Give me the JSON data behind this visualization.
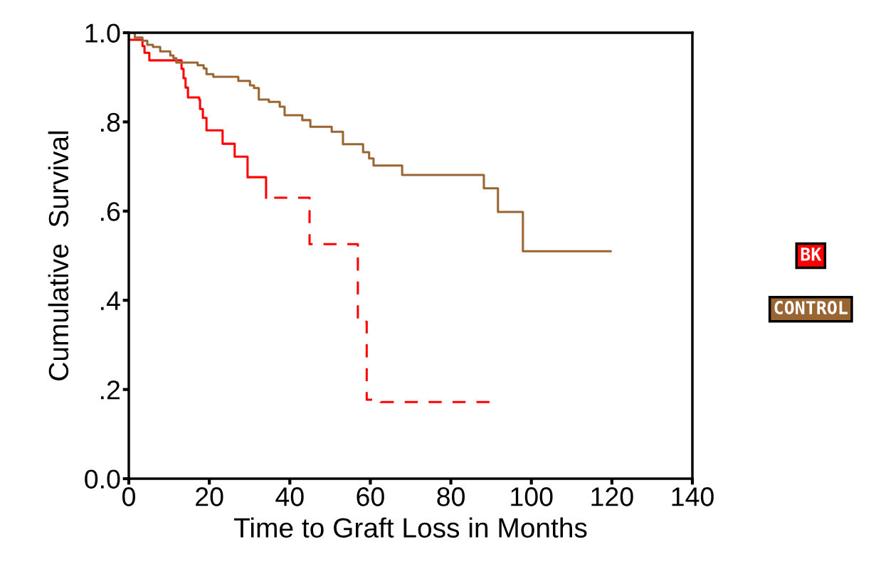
{
  "chart_data": {
    "type": "step",
    "xlabel": "Time to Graft Loss in Months",
    "ylabel": "Cumulative  Survival",
    "xlim": [
      0,
      140
    ],
    "xticks": [
      0,
      20,
      40,
      60,
      80,
      100,
      120,
      140
    ],
    "ylim": [
      0,
      1
    ],
    "yticks": [
      {
        "value": 0,
        "label": "0.0"
      },
      {
        "value": 0.2,
        "label": ".2"
      },
      {
        "value": 0.4,
        "label": ".4"
      },
      {
        "value": 0.6,
        "label": ".6"
      },
      {
        "value": 0.8,
        "label": ".8"
      },
      {
        "value": 1,
        "label": "1.0"
      }
    ],
    "grid": false,
    "legend": "right",
    "marker": "none",
    "series": [
      {
        "name": "BK",
        "color": "#ff0000",
        "line_style": "solid",
        "x": [
          0,
          3.4,
          3.9,
          5.1,
          13.1,
          13.6,
          14.1,
          14.7,
          17.5,
          17.7,
          18.4,
          19.3,
          23.3,
          26.3,
          29.5,
          34.1
        ],
        "values": [
          0.984,
          0.97,
          0.955,
          0.938,
          0.919,
          0.898,
          0.877,
          0.855,
          0.85,
          0.829,
          0.809,
          0.781,
          0.751,
          0.722,
          0.676,
          0.63
        ]
      },
      {
        "color": "#ff0000",
        "line_style": "dashed",
        "x": [
          34.1,
          44.9,
          56.9,
          59.1,
          62.6,
          89.6
        ],
        "values": [
          0.63,
          0.526,
          0.352,
          0.177,
          0.172,
          0.172
        ]
      },
      {
        "name": "CONTROL",
        "color": "#996633",
        "line_style": "solid",
        "x": [
          0,
          1.5,
          3.4,
          4.6,
          6.0,
          7.8,
          10.3,
          11.1,
          11.8,
          17.1,
          18.6,
          19.3,
          21.0,
          27.2,
          30.1,
          31.1,
          32.3,
          34.8,
          37.5,
          38.7,
          43.1,
          45.1,
          50.4,
          53.2,
          58.2,
          59.7,
          60.8,
          67.9,
          88.2,
          91.7,
          97.9,
          119.7
        ],
        "values": [
          1.0,
          0.989,
          0.982,
          0.973,
          0.968,
          0.958,
          0.949,
          0.943,
          0.933,
          0.927,
          0.92,
          0.907,
          0.901,
          0.892,
          0.882,
          0.876,
          0.85,
          0.845,
          0.834,
          0.815,
          0.804,
          0.789,
          0.778,
          0.75,
          0.732,
          0.718,
          0.702,
          0.681,
          0.651,
          0.598,
          0.51,
          0.51
        ]
      }
    ]
  }
}
